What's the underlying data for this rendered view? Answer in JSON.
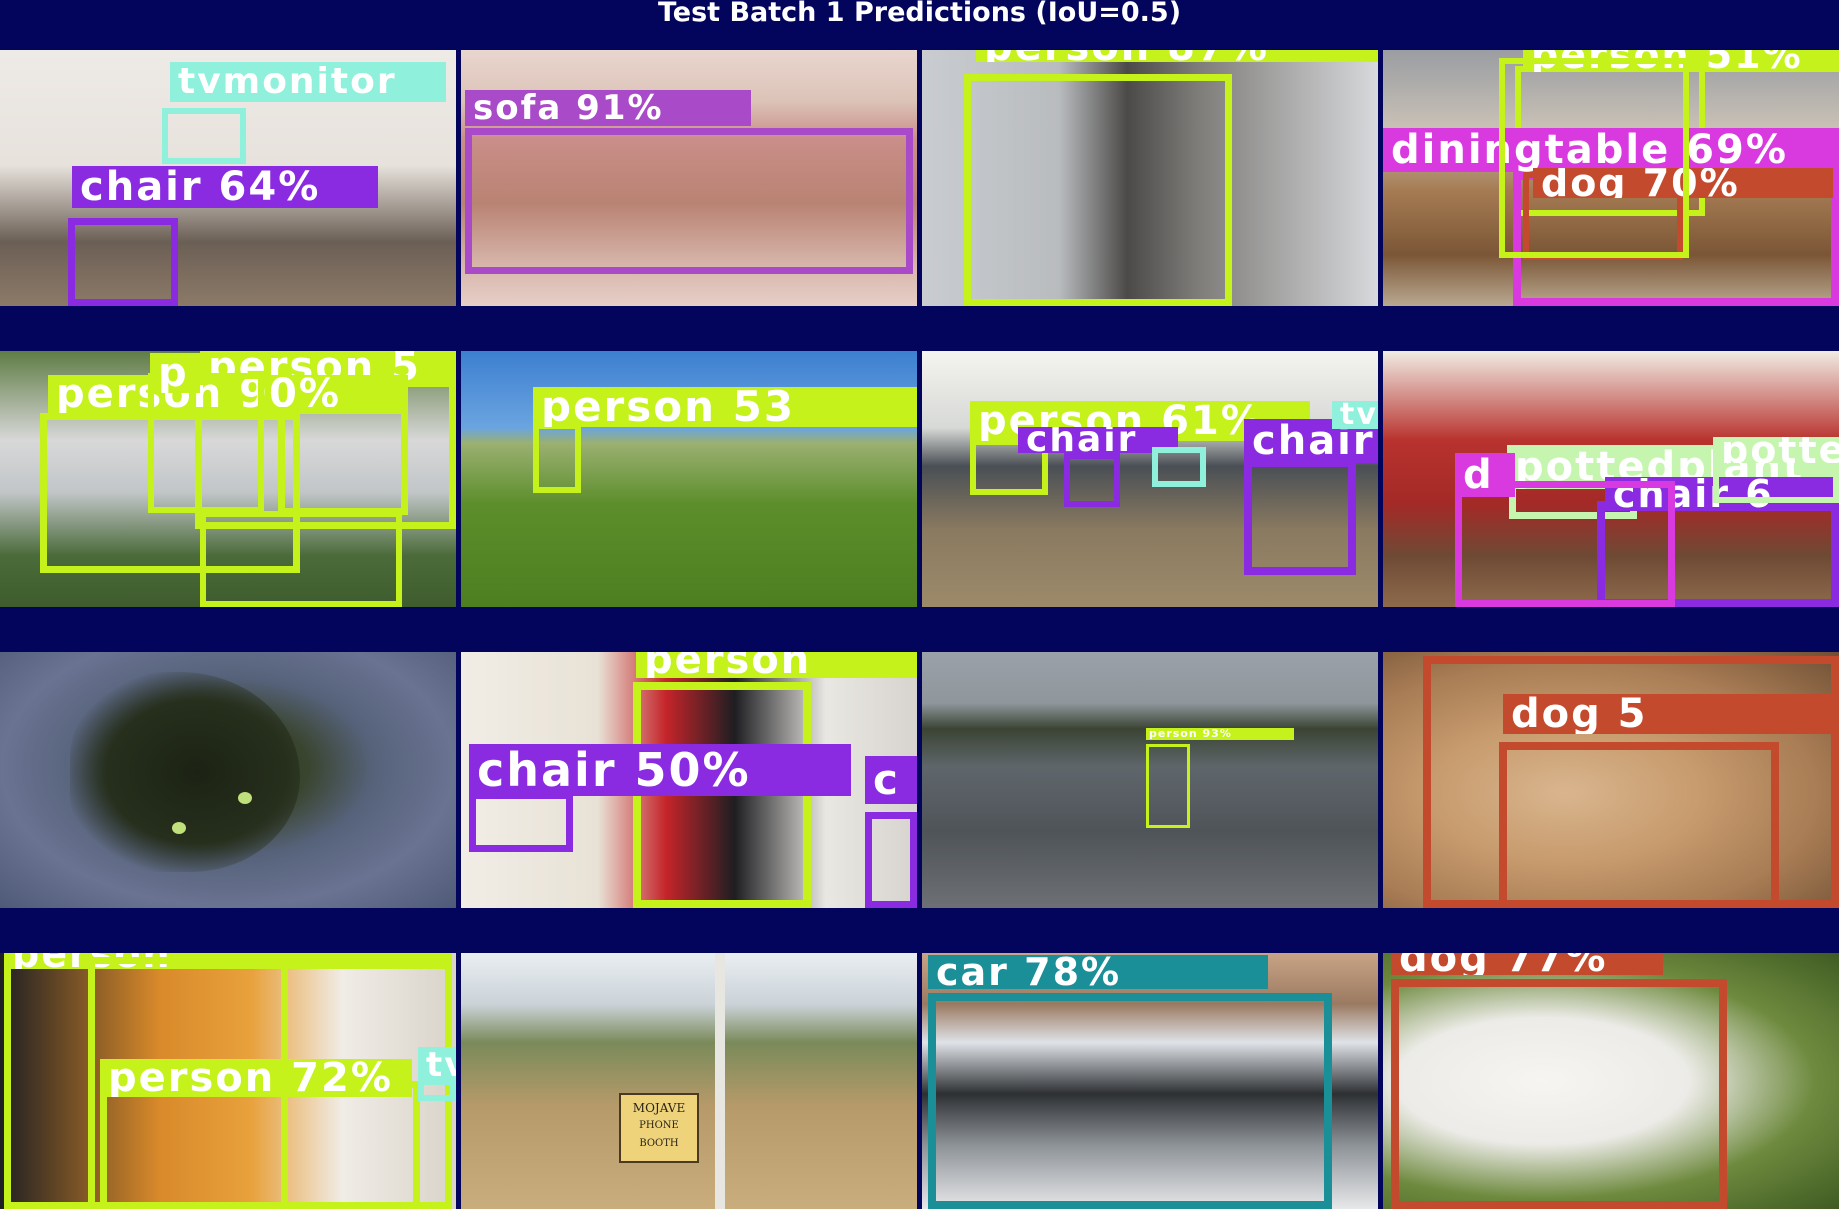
{
  "title": "Test Batch 1 Predictions (IoU=0.5)",
  "colors": {
    "background": "#03055c",
    "tvmonitor": "#8ff0dc",
    "chair": "#8a2be2",
    "sofa": "#a94ac8",
    "person": "#c4f21a",
    "diningtable": "#d83ae0",
    "dog": "#c44a2e",
    "pottedplant": "#c6f5b0",
    "car": "#1a8f98"
  },
  "panels": [
    {
      "name": "living-room-clutter",
      "labels": [
        {
          "class": "tvmonitor",
          "text": "tvmonitor"
        },
        {
          "class": "chair",
          "text": "chair 64%"
        }
      ]
    },
    {
      "name": "floral-sofa",
      "labels": [
        {
          "class": "sofa",
          "text": "sofa 91%"
        }
      ]
    },
    {
      "name": "young-man-portrait",
      "labels": [
        {
          "class": "person",
          "text": "person 87%"
        }
      ]
    },
    {
      "name": "dining-room-dog",
      "labels": [
        {
          "class": "person",
          "text": "person 51%"
        },
        {
          "class": "diningtable",
          "text": "diningtable 69%"
        },
        {
          "class": "dog",
          "text": "dog 70%"
        }
      ]
    },
    {
      "name": "group-sitting-on-grass",
      "labels": [
        {
          "class": "person",
          "text": "person 5"
        },
        {
          "class": "person",
          "text": "person 90%"
        },
        {
          "class": "person",
          "text": "p"
        }
      ]
    },
    {
      "name": "horse-field",
      "labels": [
        {
          "class": "person",
          "text": "person 53"
        }
      ]
    },
    {
      "name": "open-office",
      "labels": [
        {
          "class": "person",
          "text": "person 61%"
        },
        {
          "class": "chair",
          "text": "chair"
        },
        {
          "class": "chair",
          "text": "chair"
        },
        {
          "class": "tvmonitor",
          "text": "tv"
        }
      ]
    },
    {
      "name": "red-dining-room",
      "labels": [
        {
          "class": "pottedplant",
          "text": "pottedplant"
        },
        {
          "class": "chair",
          "text": "chair 6"
        },
        {
          "class": "diningtable",
          "text": "d"
        },
        {
          "class": "pottedplant",
          "text": "potte"
        }
      ]
    },
    {
      "name": "cat-on-rug",
      "labels": []
    },
    {
      "name": "woman-red-shirt",
      "labels": [
        {
          "class": "person",
          "text": "person"
        },
        {
          "class": "chair",
          "text": "chair 50%"
        },
        {
          "class": "chair",
          "text": "c"
        }
      ]
    },
    {
      "name": "beach-running",
      "labels": [
        {
          "class": "person",
          "text": "person 93%"
        }
      ]
    },
    {
      "name": "fluffy-dog-closeup",
      "labels": [
        {
          "class": "dog",
          "text": "dog 5"
        }
      ]
    },
    {
      "name": "elderly-man-reading",
      "labels": [
        {
          "class": "person",
          "text": "person 72%"
        },
        {
          "class": "person",
          "text": "person"
        },
        {
          "class": "tvmonitor",
          "text": "tv"
        }
      ]
    },
    {
      "name": "mojave-desert-booth",
      "labels": [],
      "sign": {
        "line1": "MOJAVE",
        "line2": "PHONE BOOTH"
      }
    },
    {
      "name": "concept-car",
      "labels": [
        {
          "class": "car",
          "text": "car 78%"
        }
      ]
    },
    {
      "name": "white-dog-on-grass",
      "labels": [
        {
          "class": "dog",
          "text": "dog 77%"
        }
      ]
    }
  ]
}
